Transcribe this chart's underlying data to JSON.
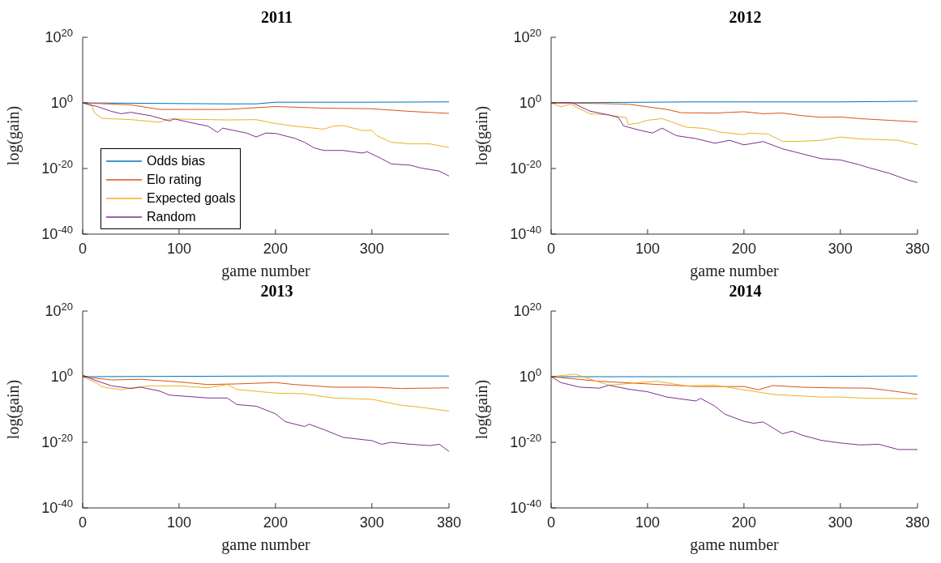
{
  "chart_data": [
    {
      "type": "line",
      "title": "2011",
      "xlabel": "game number",
      "ylabel": "log(gain)",
      "log": true,
      "legend": "bottom left",
      "xlim": [
        0,
        380
      ],
      "xticks": [
        0,
        100,
        200,
        300
      ],
      "ylim": [
        1e-40,
        1e+20
      ],
      "yticks": [
        {
          "value": 1e-40,
          "label": "10$^{-40}$"
        },
        {
          "value": 1e-20,
          "label": "10$^{-20}$"
        },
        {
          "value": 1,
          "label": "10$^{0}$"
        },
        {
          "value": 1e+20,
          "label": "10$^{20}$"
        }
      ],
      "series": [
        {
          "name": "Odds bias",
          "color": "#0072bd",
          "x": [
            0,
            100,
            150,
            180,
            200,
            300,
            380
          ],
          "values": [
            1,
            0.63,
            0.5,
            0.5,
            1.6,
            1.6,
            2
          ]
        },
        {
          "name": "Elo rating",
          "color": "#d95319",
          "x": [
            0,
            50,
            80,
            150,
            200,
            250,
            300,
            340,
            380
          ],
          "values": [
            1,
            0.25,
            0.01,
            0.01,
            0.079,
            0.025,
            0.016,
            0.0025,
            0.00063
          ]
        },
        {
          "name": "Expected goals",
          "color": "#edb120",
          "x": [
            0,
            10,
            12,
            20,
            50,
            80,
            90,
            150,
            180,
            200,
            220,
            250,
            260,
            270,
            290,
            300,
            305,
            320,
            340,
            360,
            380
          ],
          "values": [
            1,
            0.1,
            0.001,
            2e-05,
            7.9e-06,
            1.3e-06,
            1.3e-05,
            6.3e-06,
            7.9e-06,
            5e-07,
            7.9e-08,
            1e-08,
            7.9e-08,
            1.3e-07,
            4e-09,
            4e-09,
            1e-10,
            1e-12,
            3.2e-13,
            3.2e-13,
            2.5e-14
          ]
        },
        {
          "name": "Random",
          "color": "#7e2f8e",
          "x": [
            0,
            15,
            30,
            40,
            50,
            70,
            90,
            95,
            110,
            130,
            140,
            145,
            170,
            180,
            190,
            200,
            220,
            230,
            240,
            250,
            270,
            290,
            295,
            310,
            320,
            340,
            350,
            370,
            380
          ],
          "values": [
            1,
            0.079,
            0.0025,
            0.0005,
            0.0013,
            0.00013,
            3.2e-06,
            1.3e-05,
            1.3e-06,
            7.9e-08,
            1e-09,
            2e-08,
            6.3e-10,
            4e-11,
            6.3e-10,
            5e-10,
            1.6e-11,
            1e-12,
            2e-14,
            3.2e-15,
            3.2e-15,
            5e-16,
            1.3e-15,
            1e-17,
            2.5e-19,
            1e-19,
            1.6e-20,
            1.6e-21,
            5e-23
          ]
        }
      ]
    },
    {
      "type": "line",
      "title": "2012",
      "xlabel": "game number",
      "ylabel": "log(gain)",
      "log": true,
      "xlim": [
        0,
        380
      ],
      "xticks": [
        0,
        100,
        200,
        300,
        380
      ],
      "ylim": [
        1e-40,
        1e+20
      ],
      "yticks": [
        {
          "value": 1e-40,
          "label": "10$^{-40}$"
        },
        {
          "value": 1e-20,
          "label": "10$^{-20}$"
        },
        {
          "value": 1,
          "label": "10$^{0}$"
        },
        {
          "value": 1e+20,
          "label": "10$^{20}$"
        }
      ],
      "series": [
        {
          "color": "#0072bd",
          "x": [
            0,
            150,
            300,
            380
          ],
          "values": [
            1,
            2,
            2,
            3.2
          ]
        },
        {
          "color": "#d95319",
          "x": [
            0,
            50,
            80,
            100,
            120,
            135,
            170,
            200,
            220,
            240,
            260,
            280,
            300,
            320,
            350,
            380
          ],
          "values": [
            1,
            0.63,
            0.4,
            0.063,
            0.01,
            0.001,
            0.00079,
            0.002,
            0.0005,
            0.00079,
            0.00013,
            4e-05,
            5e-05,
            1.6e-05,
            5e-06,
            1.6e-06
          ]
        },
        {
          "color": "#edb120",
          "x": [
            0,
            10,
            20,
            40,
            60,
            78,
            80,
            90,
            100,
            115,
            125,
            140,
            160,
            175,
            200,
            205,
            225,
            240,
            260,
            280,
            300,
            320,
            360,
            380
          ],
          "values": [
            1,
            0.063,
            0.4,
            0.0005,
            0.0002,
            3.2e-05,
            2.5e-07,
            6.3e-07,
            5e-06,
            1.6e-05,
            1.6e-06,
            4e-08,
            1.6e-08,
            1.3e-09,
            2e-10,
            6.3e-10,
            3.2e-10,
            2e-12,
            2e-12,
            4e-12,
            4e-11,
            1e-11,
            4e-12,
            1.6e-13
          ]
        },
        {
          "color": "#7e2f8e",
          "x": [
            0,
            20,
            25,
            40,
            60,
            70,
            75,
            90,
            105,
            115,
            130,
            150,
            170,
            185,
            200,
            220,
            240,
            260,
            280,
            300,
            320,
            330,
            350,
            370,
            380
          ],
          "values": [
            1,
            1.3,
            0.4,
            0.0032,
            0.0002,
            3.2e-05,
            1e-07,
            6.3e-09,
            6.3e-10,
            2e-08,
            1e-10,
            1.3e-11,
            5e-13,
            4e-12,
            1.6e-13,
            1.6e-12,
            1e-14,
            3.2e-16,
            1e-17,
            4e-18,
            1.3e-19,
            1.6e-20,
            4e-22,
            3.2e-24,
            5e-25
          ]
        }
      ]
    },
    {
      "type": "line",
      "title": "2013",
      "xlabel": "game number",
      "ylabel": "log(gain)",
      "log": true,
      "xlim": [
        0,
        380
      ],
      "xticks": [
        0,
        100,
        200,
        300,
        380
      ],
      "ylim": [
        1e-40,
        1e+20
      ],
      "yticks": [
        {
          "value": 1e-40,
          "label": "10$^{-40}$"
        },
        {
          "value": 1e-20,
          "label": "10$^{-20}$"
        },
        {
          "value": 1,
          "label": "10$^{0}$"
        },
        {
          "value": 1e+20,
          "label": "10$^{20}$"
        }
      ],
      "series": [
        {
          "color": "#0072bd",
          "x": [
            0,
            200,
            380
          ],
          "values": [
            1,
            1.6,
            1.6
          ]
        },
        {
          "color": "#d95319",
          "x": [
            0,
            30,
            60,
            80,
            100,
            130,
            160,
            200,
            220,
            260,
            300,
            330,
            380
          ],
          "values": [
            1,
            0.1,
            0.16,
            0.063,
            0.025,
            0.004,
            0.0063,
            0.016,
            0.004,
            0.00063,
            0.00063,
            0.00025,
            0.0004
          ]
        },
        {
          "color": "#edb120",
          "x": [
            0,
            15,
            20,
            40,
            50,
            70,
            100,
            130,
            150,
            160,
            200,
            230,
            260,
            300,
            330,
            350,
            380
          ],
          "values": [
            1,
            0.01,
            0.00079,
            0.0001,
            0.0004,
            0.0016,
            0.0016,
            0.0004,
            0.004,
            0.00013,
            1e-05,
            6.3e-06,
            3.2e-07,
            1.3e-07,
            2e-09,
            5e-10,
            3.2e-11
          ]
        },
        {
          "color": "#7e2f8e",
          "x": [
            0,
            10,
            30,
            50,
            60,
            80,
            90,
            130,
            150,
            160,
            180,
            200,
            210,
            230,
            235,
            250,
            270,
            300,
            310,
            320,
            340,
            360,
            370,
            380
          ],
          "values": [
            3.2,
            0.16,
            0.0016,
            0.00025,
            0.00063,
            4e-05,
            2.5e-06,
            3.2e-07,
            3.2e-07,
            3.2e-09,
            1e-09,
            5e-12,
            2e-14,
            6.3e-16,
            3.2e-15,
            7.9e-17,
            3.2e-19,
            3.2e-20,
            2.5e-21,
            1e-20,
            2.5e-21,
            1e-21,
            2.5e-21,
            1.6e-23
          ]
        }
      ]
    },
    {
      "type": "line",
      "title": "2014",
      "xlabel": "game number",
      "ylabel": "log(gain)",
      "log": true,
      "xlim": [
        0,
        380
      ],
      "xticks": [
        0,
        100,
        200,
        300,
        380
      ],
      "ylim": [
        1e-40,
        1e+20
      ],
      "yticks": [
        {
          "value": 1e-40,
          "label": "10$^{-40}$"
        },
        {
          "value": 1e-20,
          "label": "10$^{-20}$"
        },
        {
          "value": 1,
          "label": "10$^{0}$"
        },
        {
          "value": 1e+20,
          "label": "10$^{20}$"
        }
      ],
      "series": [
        {
          "color": "#0072bd",
          "x": [
            0,
            200,
            380
          ],
          "values": [
            1,
            1,
            1.6
          ]
        },
        {
          "color": "#d95319",
          "x": [
            0,
            50,
            100,
            150,
            200,
            215,
            230,
            260,
            290,
            330,
            350,
            380
          ],
          "values": [
            1,
            0.04,
            0.0063,
            0.001,
            0.001,
            0.0001,
            0.002,
            0.00063,
            0.0004,
            0.00032,
            6.3e-05,
            4e-06
          ]
        },
        {
          "color": "#edb120",
          "x": [
            0,
            25,
            35,
            60,
            100,
            110,
            140,
            170,
            200,
            230,
            280,
            300,
            330,
            380
          ],
          "values": [
            1,
            6.3,
            0.63,
            0.0025,
            0.025,
            0.04,
            0.0016,
            0.0025,
            0.0001,
            4e-06,
            6.3e-07,
            6.3e-07,
            2.5e-07,
            2e-07
          ]
        },
        {
          "color": "#7e2f8e",
          "x": [
            0,
            10,
            30,
            50,
            60,
            80,
            100,
            120,
            150,
            155,
            170,
            180,
            200,
            210,
            220,
            240,
            250,
            260,
            280,
            300,
            320,
            340,
            360,
            380
          ],
          "values": [
            1,
            0.016,
            0.00063,
            0.00032,
            0.0025,
            0.00016,
            2.5e-05,
            6.3e-07,
            4e-08,
            2.5e-07,
            1e-09,
            4e-12,
            2.5e-14,
            6.3e-15,
            1.6e-14,
            4e-18,
            2.5e-17,
            1.6e-18,
            4e-20,
            6.3e-21,
            1.6e-21,
            2.5e-21,
            6.3e-23,
            6.3e-23
          ]
        }
      ]
    }
  ]
}
